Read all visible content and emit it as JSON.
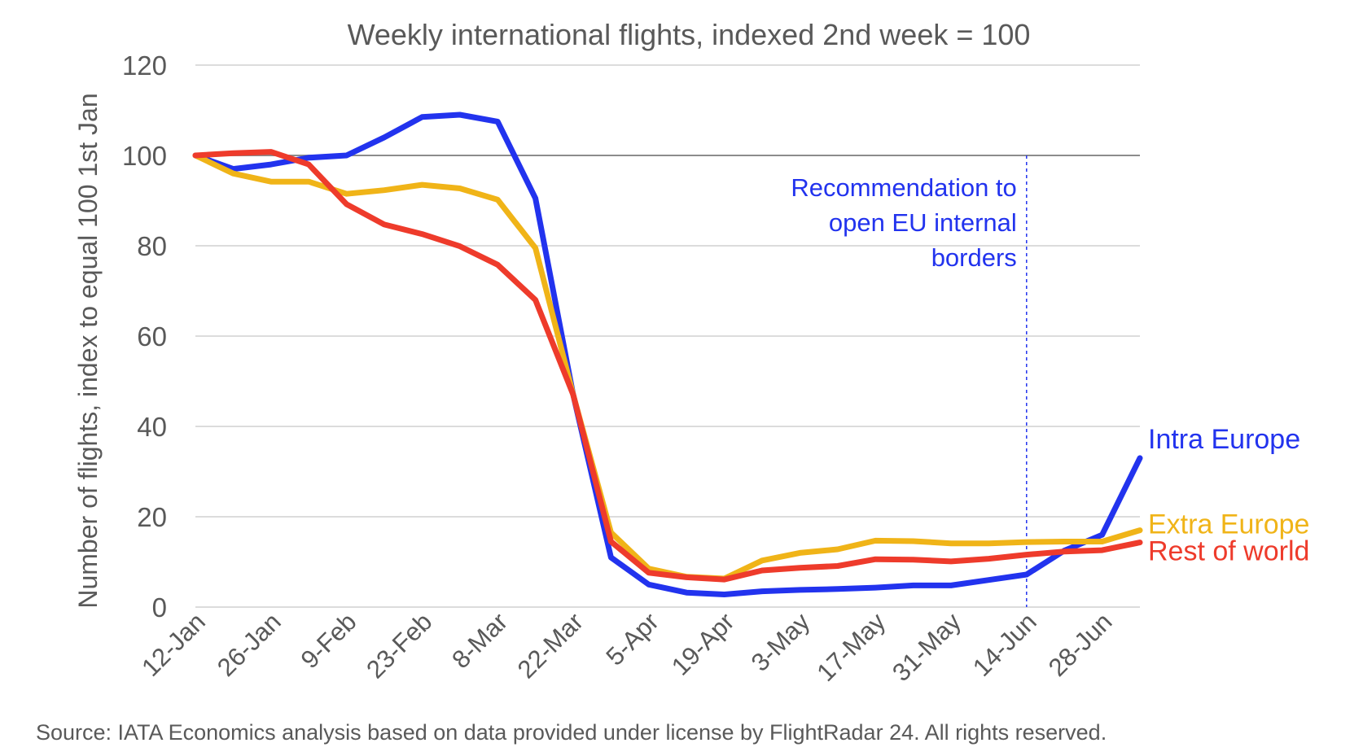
{
  "chart_data": {
    "type": "line",
    "title": "Weekly international flights, indexed 2nd week = 100",
    "ylabel": "Number of flights, index to equal 100 1st Jan",
    "xlabel": "",
    "ylim": [
      0,
      120
    ],
    "yticks": [
      0,
      20,
      40,
      60,
      80,
      100,
      120
    ],
    "reference_line_y": 100,
    "grid": true,
    "x_tick_labels": [
      "12-Jan",
      "26-Jan",
      "9-Feb",
      "23-Feb",
      "8-Mar",
      "22-Mar",
      "5-Apr",
      "19-Apr",
      "3-May",
      "17-May",
      "31-May",
      "14-Jun",
      "28-Jun"
    ],
    "weeks": [
      "12-Jan",
      "19-Jan",
      "26-Jan",
      "2-Feb",
      "9-Feb",
      "16-Feb",
      "23-Feb",
      "1-Mar",
      "8-Mar",
      "15-Mar",
      "22-Mar",
      "29-Mar",
      "5-Apr",
      "12-Apr",
      "19-Apr",
      "26-Apr",
      "3-May",
      "10-May",
      "17-May",
      "24-May",
      "31-May",
      "7-Jun",
      "14-Jun",
      "21-Jun",
      "28-Jun",
      "5-Jul"
    ],
    "series": [
      {
        "name": "Intra Europe",
        "color": "#2233ee",
        "values": [
          100,
          97,
          98,
          99.5,
          100,
          104,
          108.5,
          109,
          107.5,
          90.5,
          47,
          11,
          5,
          3.2,
          2.8,
          3.5,
          3.8,
          4.0,
          4.3,
          4.8,
          4.8,
          6.0,
          7.2,
          12.5,
          16,
          33
        ]
      },
      {
        "name": "Extra Europe",
        "color": "#f0b418",
        "values": [
          100,
          96,
          94.2,
          94.2,
          91.5,
          92.3,
          93.5,
          92.7,
          90.2,
          79.5,
          47,
          16.5,
          8.5,
          6.7,
          6.3,
          10.3,
          12.0,
          12.8,
          14.7,
          14.6,
          14.1,
          14.1,
          14.4,
          14.5,
          14.5,
          17
        ]
      },
      {
        "name": "Rest of world",
        "color": "#ee3b2b",
        "values": [
          100,
          100.5,
          100.8,
          98,
          89.2,
          84.7,
          82.6,
          79.9,
          75.8,
          68,
          47,
          14.5,
          7.6,
          6.6,
          6.1,
          8.1,
          8.7,
          9.1,
          10.6,
          10.5,
          10.1,
          10.7,
          11.6,
          12.3,
          12.6,
          14.3
        ]
      }
    ],
    "annotation": {
      "lines": [
        "Recommendation to",
        "open EU internal",
        "borders"
      ],
      "x_week": "14-Jun",
      "color": "#2233ee"
    }
  },
  "source": "Source: IATA Economics analysis based on data provided under license by FlightRadar 24. All rights reserved."
}
